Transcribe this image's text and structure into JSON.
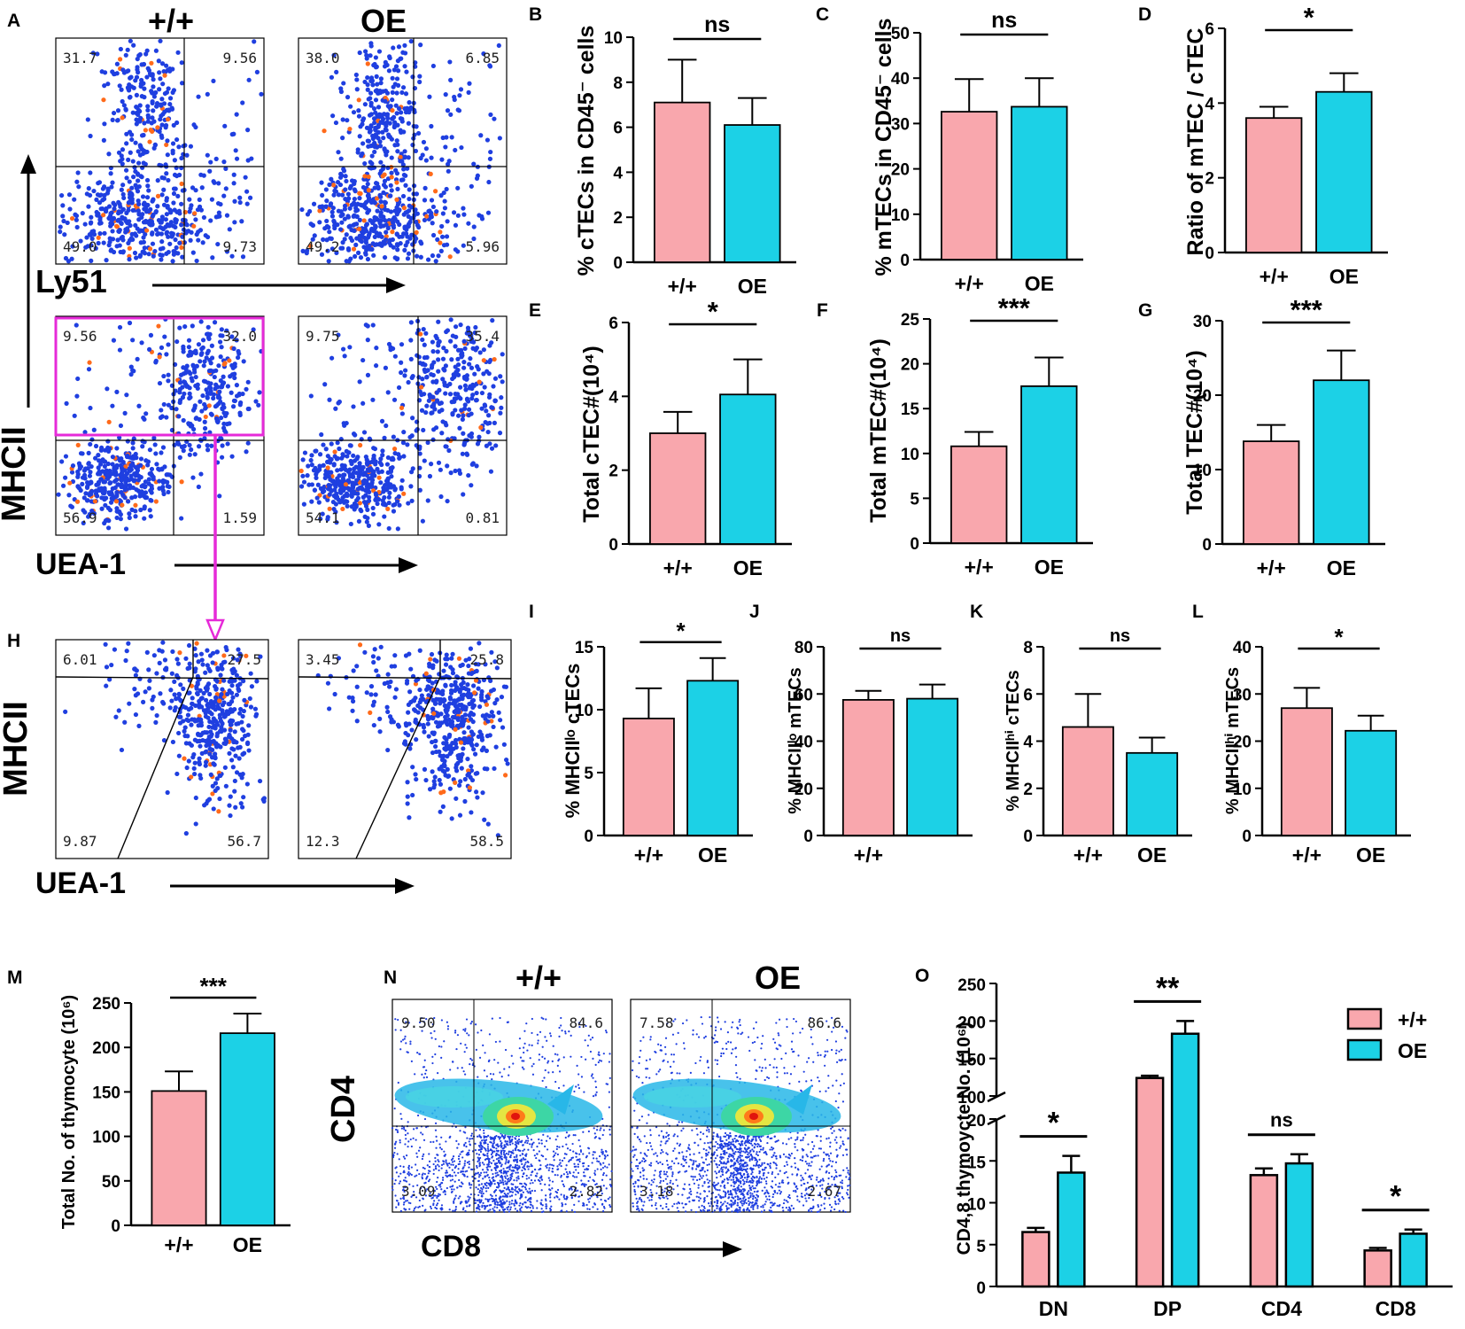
{
  "colors": {
    "wt": "#f9a7ad",
    "oe": "#1cd1e6",
    "dot": "#1f3fe0",
    "hot": "#ff6a1a",
    "gate": "#e62ad8"
  },
  "flow": {
    "panel_A": {
      "letter": "A",
      "col_labels": [
        "+/+",
        "OE"
      ],
      "row1_axis_x": "Ly51",
      "row2_axis_x": "UEA-1",
      "axis_y": "MHCII",
      "plots": [
        {
          "ul": "31.7",
          "ur": "9.56",
          "ll": "49.0",
          "lr": "9.73"
        },
        {
          "ul": "38.0",
          "ur": "6.85",
          "ll": "49.2",
          "lr": "5.96"
        },
        {
          "ul": "9.56",
          "ur": "32.0",
          "ll": "56.9",
          "lr": "1.59"
        },
        {
          "ul": "9.75",
          "ur": "35.4",
          "ll": "54.1",
          "lr": "0.81"
        }
      ]
    },
    "panel_H": {
      "letter": "H",
      "axis_x": "UEA-1",
      "axis_y": "MHCII",
      "plots": [
        {
          "ul": "6.01",
          "ur": "27.5",
          "ll": "9.87",
          "lr": "56.7"
        },
        {
          "ul": "3.45",
          "ur": "25.8",
          "ll": "12.3",
          "lr": "58.5"
        }
      ]
    },
    "panel_N": {
      "letter": "N",
      "col_labels": [
        "+/+",
        "OE"
      ],
      "axis_x": "CD8",
      "axis_y": "CD4",
      "plots": [
        {
          "ul": "9.50",
          "ur": "84.6",
          "ll": "3.09",
          "lr": "2.82"
        },
        {
          "ul": "7.58",
          "ur": "86.6",
          "ll": "3.18",
          "lr": "2.67"
        }
      ]
    }
  },
  "chart_data": [
    {
      "panel": "B",
      "type": "bar",
      "categories": [
        "+/+",
        "OE"
      ],
      "values": [
        7.1,
        6.1
      ],
      "errors": [
        1.9,
        1.2
      ],
      "ylabel": "% cTECs in CD45⁻ cells",
      "ylim": [
        0,
        10
      ],
      "yticks": [
        0,
        2,
        4,
        6,
        8,
        10
      ],
      "sig": "ns"
    },
    {
      "panel": "C",
      "type": "bar",
      "categories": [
        "+/+",
        "OE"
      ],
      "values": [
        32.6,
        33.7
      ],
      "errors": [
        7.2,
        6.3
      ],
      "ylabel": "% mTECs in CD45⁻ cells",
      "ylim": [
        0,
        50
      ],
      "yticks": [
        0,
        10,
        20,
        30,
        40,
        50
      ],
      "sig": "ns"
    },
    {
      "panel": "D",
      "type": "bar",
      "categories": [
        "+/+",
        "OE"
      ],
      "values": [
        3.6,
        4.3
      ],
      "errors": [
        0.3,
        0.5
      ],
      "ylabel": "Ratio of mTEC / cTEC",
      "ylim": [
        0,
        6
      ],
      "yticks": [
        0,
        2,
        4,
        6
      ],
      "sig": "*"
    },
    {
      "panel": "E",
      "type": "bar",
      "categories": [
        "+/+",
        "OE"
      ],
      "values": [
        3.0,
        4.05
      ],
      "errors": [
        0.58,
        0.95
      ],
      "ylabel": "Total cTEC#(10⁴)",
      "ylim": [
        0,
        6
      ],
      "yticks": [
        0,
        2,
        4,
        6
      ],
      "sig": "*"
    },
    {
      "panel": "F",
      "type": "bar",
      "categories": [
        "+/+",
        "OE"
      ],
      "values": [
        10.8,
        17.5
      ],
      "errors": [
        1.6,
        3.2
      ],
      "ylabel": "Total mTEC#(10⁴)",
      "ylim": [
        0,
        25
      ],
      "yticks": [
        0,
        5,
        10,
        15,
        20,
        25
      ],
      "sig": "***"
    },
    {
      "panel": "G",
      "type": "bar",
      "categories": [
        "+/+",
        "OE"
      ],
      "values": [
        13.8,
        22.0
      ],
      "errors": [
        2.2,
        4.0
      ],
      "ylabel": "Total TEC#(10⁴)",
      "ylim": [
        0,
        30
      ],
      "yticks": [
        0,
        10,
        20,
        30
      ],
      "sig": "***"
    },
    {
      "panel": "I",
      "type": "bar",
      "categories": [
        "+/+",
        "OE"
      ],
      "values": [
        9.3,
        12.3
      ],
      "errors": [
        2.4,
        1.8
      ],
      "ylabel": "% MHCIIˡᵒ cTECs",
      "ylim": [
        0,
        15
      ],
      "yticks": [
        0,
        5,
        10,
        15
      ],
      "sig": "*"
    },
    {
      "panel": "J",
      "type": "bar",
      "categories": [
        "+/+",
        ""
      ],
      "values": [
        57.5,
        58.0
      ],
      "errors": [
        3.8,
        6.0
      ],
      "ylabel": "% MHCIIˡᵒ mTECs",
      "ylim": [
        0,
        80
      ],
      "yticks": [
        0,
        20,
        40,
        60,
        80
      ],
      "sig": "ns"
    },
    {
      "panel": "K",
      "type": "bar",
      "categories": [
        "+/+",
        "OE"
      ],
      "values": [
        4.6,
        3.5
      ],
      "errors": [
        1.4,
        0.65
      ],
      "ylabel": "% MHCIIʰⁱ cTECs",
      "ylim": [
        0,
        8
      ],
      "yticks": [
        0,
        2,
        4,
        6,
        8
      ],
      "sig": "ns"
    },
    {
      "panel": "L",
      "type": "bar",
      "categories": [
        "+/+",
        "OE"
      ],
      "values": [
        27.0,
        22.2
      ],
      "errors": [
        4.3,
        3.2
      ],
      "ylabel": "% MHCIIʰⁱ mTECs",
      "ylim": [
        0,
        40
      ],
      "yticks": [
        0,
        10,
        20,
        30,
        40
      ],
      "sig": "*"
    },
    {
      "panel": "M",
      "type": "bar",
      "categories": [
        "+/+",
        "OE"
      ],
      "values": [
        151,
        216
      ],
      "errors": [
        22,
        22
      ],
      "ylabel": "Total No. of thymocyte (10⁶)",
      "ylim": [
        0,
        250
      ],
      "yticks": [
        0,
        50,
        100,
        150,
        200,
        250
      ],
      "sig": "***"
    },
    {
      "panel": "O",
      "type": "bar",
      "categories": [
        "DN",
        "DP",
        "CD4",
        "CD8"
      ],
      "series": [
        {
          "name": "+/+",
          "values": [
            6.5,
            124,
            13.3,
            4.3
          ],
          "errors": [
            0.5,
            3,
            0.8,
            0.3
          ]
        },
        {
          "name": "OE",
          "values": [
            13.6,
            183,
            14.7,
            6.3
          ],
          "errors": [
            2.0,
            17,
            1.1,
            0.5
          ]
        }
      ],
      "ylabel": "CD4,8 thymoycte No. (10⁶)",
      "ylim": [
        0,
        250
      ],
      "axis_break": [
        20,
        100
      ],
      "yticks_low": [
        0,
        5,
        10,
        15,
        20
      ],
      "yticks_high": [
        100,
        150,
        200,
        250
      ],
      "sig": [
        "*",
        "**",
        "ns",
        "*"
      ]
    }
  ]
}
